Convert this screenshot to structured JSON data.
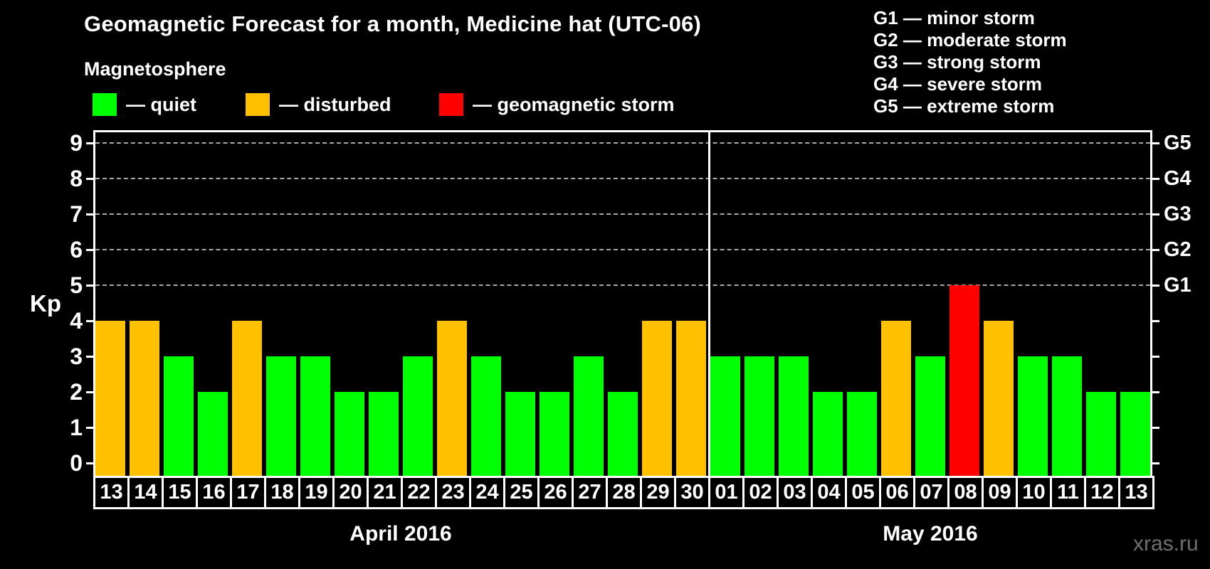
{
  "page": {
    "watermark": "xras.ru"
  },
  "legend": {
    "heading": "Magnetosphere",
    "items": [
      {
        "key": "quiet",
        "label": "— quiet"
      },
      {
        "key": "disturbed",
        "label": "— disturbed"
      },
      {
        "key": "storm",
        "label": "— geomagnetic storm"
      }
    ]
  },
  "storm_scale_legend": [
    "G1 — minor storm",
    "G2 — moderate storm",
    "G3 — strong storm",
    "G4 — severe storm",
    "G5 — extreme storm"
  ],
  "chart_data": {
    "type": "bar",
    "title": "Geomagnetic Forecast for a month, Medicine hat (UTC-06)",
    "xlabel": "",
    "ylabel": "Kp",
    "ylim": [
      0,
      9.4
    ],
    "y_ticks": [
      0,
      1,
      2,
      3,
      4,
      5,
      6,
      7,
      8,
      9
    ],
    "gridlines_at": [
      5,
      6,
      7,
      8,
      9
    ],
    "grid": true,
    "legend_position": "top-left",
    "right_axis": [
      {
        "kp": 5,
        "label": "G1"
      },
      {
        "kp": 6,
        "label": "G2"
      },
      {
        "kp": 7,
        "label": "G3"
      },
      {
        "kp": 8,
        "label": "G4"
      },
      {
        "kp": 9,
        "label": "G5"
      }
    ],
    "months": [
      {
        "label": "April 2016",
        "start_index": 0,
        "days": 18
      },
      {
        "label": "May 2016",
        "start_index": 18,
        "days": 13
      }
    ],
    "categories": [
      "13",
      "14",
      "15",
      "16",
      "17",
      "18",
      "19",
      "20",
      "21",
      "22",
      "23",
      "24",
      "25",
      "26",
      "27",
      "28",
      "29",
      "30",
      "01",
      "02",
      "03",
      "04",
      "05",
      "06",
      "07",
      "08",
      "09",
      "10",
      "11",
      "12",
      "13"
    ],
    "values": [
      4,
      4,
      3,
      2,
      4,
      3,
      3,
      2,
      2,
      3,
      4,
      3,
      2,
      2,
      3,
      2,
      4,
      4,
      3,
      3,
      3,
      2,
      2,
      4,
      3,
      5,
      4,
      3,
      3,
      2,
      2
    ],
    "statuses": [
      "disturbed",
      "disturbed",
      "quiet",
      "quiet",
      "disturbed",
      "quiet",
      "quiet",
      "quiet",
      "quiet",
      "quiet",
      "disturbed",
      "quiet",
      "quiet",
      "quiet",
      "quiet",
      "quiet",
      "disturbed",
      "disturbed",
      "quiet",
      "quiet",
      "quiet",
      "quiet",
      "quiet",
      "disturbed",
      "quiet",
      "storm",
      "disturbed",
      "quiet",
      "quiet",
      "quiet",
      "quiet"
    ],
    "colors": {
      "quiet": "#00ff00",
      "disturbed": "#ffc000",
      "storm": "#ff0000",
      "axis": "#ffffff",
      "gridline": "#a8a8a8"
    }
  }
}
